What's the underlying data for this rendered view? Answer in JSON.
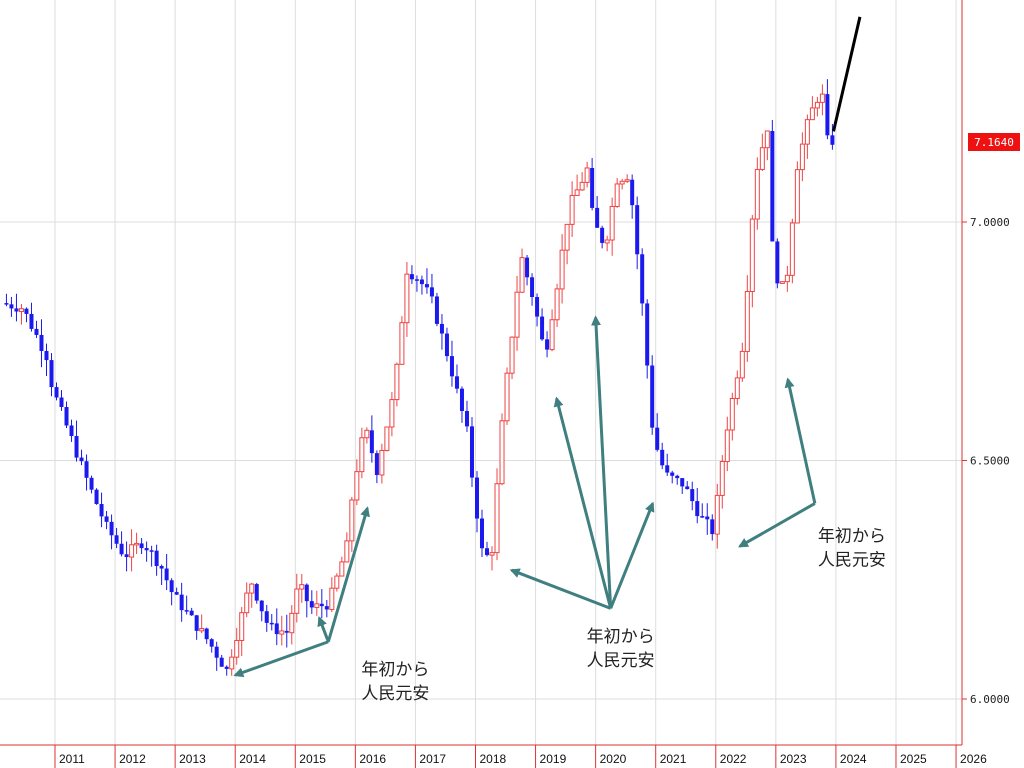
{
  "chart_data": {
    "type": "candlestick",
    "interval": "monthly",
    "colors": {
      "up": "#ee4444",
      "down": "#1a1aee",
      "grid": "#dddddd",
      "axis": "#dd3333",
      "annotation": "#3f7f7f",
      "price_tag": "#ee1111"
    },
    "y_axis": {
      "min": 5.85,
      "max": 7.45,
      "ticks": [
        "7.0000",
        "6.5000",
        "6.0000"
      ]
    },
    "x_axis": {
      "years": [
        "2011",
        "2012",
        "2013",
        "2014",
        "2015",
        "2016",
        "2017",
        "2018",
        "2019",
        "2020",
        "2021",
        "2022",
        "2023",
        "2024",
        "2025",
        "2026"
      ],
      "start_year": 2010.15,
      "end_year": 2026.2
    },
    "last_price": "7.1640",
    "anchors": [
      [
        2010.15,
        6.83
      ],
      [
        2010.5,
        6.82
      ],
      [
        2010.9,
        6.72
      ],
      [
        2011.0,
        6.65
      ],
      [
        2011.3,
        6.55
      ],
      [
        2011.6,
        6.45
      ],
      [
        2011.9,
        6.36
      ],
      [
        2012.2,
        6.3
      ],
      [
        2012.5,
        6.33
      ],
      [
        2012.8,
        6.28
      ],
      [
        2013.0,
        6.22
      ],
      [
        2013.3,
        6.17
      ],
      [
        2013.6,
        6.12
      ],
      [
        2013.9,
        6.06
      ],
      [
        2014.1,
        6.15
      ],
      [
        2014.3,
        6.25
      ],
      [
        2014.6,
        6.15
      ],
      [
        2014.9,
        6.14
      ],
      [
        2015.1,
        6.24
      ],
      [
        2015.3,
        6.19
      ],
      [
        2015.6,
        6.2
      ],
      [
        2015.9,
        6.32
      ],
      [
        2016.0,
        6.44
      ],
      [
        2016.2,
        6.57
      ],
      [
        2016.4,
        6.48
      ],
      [
        2016.7,
        6.65
      ],
      [
        2016.9,
        6.9
      ],
      [
        2017.1,
        6.88
      ],
      [
        2017.3,
        6.84
      ],
      [
        2017.6,
        6.71
      ],
      [
        2017.9,
        6.56
      ],
      [
        2018.0,
        6.45
      ],
      [
        2018.15,
        6.31
      ],
      [
        2018.3,
        6.29
      ],
      [
        2018.5,
        6.6
      ],
      [
        2018.8,
        6.93
      ],
      [
        2019.0,
        6.84
      ],
      [
        2019.2,
        6.72
      ],
      [
        2019.4,
        6.87
      ],
      [
        2019.6,
        7.03
      ],
      [
        2019.9,
        7.11
      ],
      [
        2020.0,
        7.0
      ],
      [
        2020.2,
        6.95
      ],
      [
        2020.4,
        7.09
      ],
      [
        2020.6,
        7.1
      ],
      [
        2020.8,
        6.85
      ],
      [
        2021.0,
        6.55
      ],
      [
        2021.2,
        6.47
      ],
      [
        2021.5,
        6.45
      ],
      [
        2021.8,
        6.38
      ],
      [
        2022.0,
        6.35
      ],
      [
        2022.2,
        6.55
      ],
      [
        2022.5,
        6.75
      ],
      [
        2022.7,
        7.1
      ],
      [
        2022.9,
        7.2
      ],
      [
        2023.0,
        6.9
      ],
      [
        2023.2,
        6.85
      ],
      [
        2023.4,
        7.12
      ],
      [
        2023.6,
        7.22
      ],
      [
        2023.8,
        7.28
      ],
      [
        2023.9,
        7.17
      ]
    ],
    "annotations": [
      {
        "lines": [
          "年初から",
          "人民元安"
        ],
        "text_at": [
          2016.1,
          6.05
        ],
        "arrow_tail": [
          2015.55,
          6.12
        ],
        "targets": [
          [
            2014.0,
            6.05
          ],
          [
            2015.4,
            6.17
          ],
          [
            2016.2,
            6.4
          ]
        ]
      },
      {
        "lines": [
          "年初から",
          "人民元安"
        ],
        "text_at": [
          2019.85,
          6.12
        ],
        "arrow_tail": [
          2020.25,
          6.19
        ],
        "targets": [
          [
            2018.6,
            6.27
          ],
          [
            2019.35,
            6.63
          ],
          [
            2020.0,
            6.8
          ],
          [
            2020.95,
            6.41
          ]
        ]
      },
      {
        "lines": [
          "年初から",
          "人民元安"
        ],
        "text_at": [
          2023.7,
          6.33
        ],
        "arrow_tail": [
          2023.65,
          6.41
        ],
        "targets": [
          [
            2022.4,
            6.32
          ],
          [
            2023.2,
            6.67
          ]
        ]
      }
    ],
    "trend_line": {
      "from": [
        2023.96,
        7.19
      ],
      "to": [
        2024.4,
        7.43
      ]
    }
  }
}
